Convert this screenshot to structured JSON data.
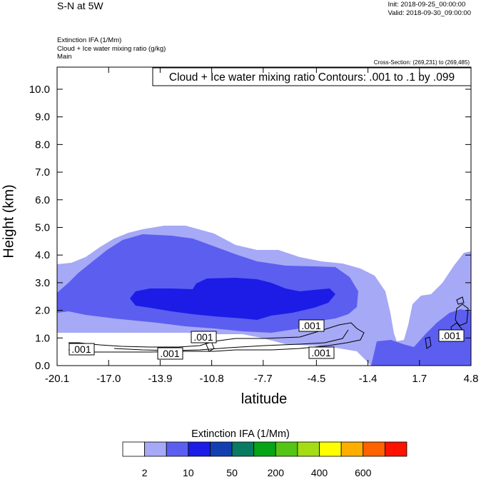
{
  "header": {
    "title": "S-N at 5W",
    "init": "Init: 2018-09-25_00:00:00",
    "valid": "Valid: 2018-09-30_09:00:00",
    "field_lines": [
      "Extinction IFA   (1/Mm)",
      "Cloud + Ice water mixing ratio   (g/kg)",
      "Main"
    ],
    "cross_section": "Cross-Section: (269,231) to (269,485)"
  },
  "chart_data": {
    "type": "contour",
    "contour_label": "Cloud + Ice water mixing ratio Contours: .001 to .1 by .099",
    "xlabel": "latitude",
    "ylabel": "Height (km)",
    "xlim": [
      -20.1,
      4.8
    ],
    "ylim": [
      0.0,
      10.8
    ],
    "x_ticks": [
      "-20.1",
      "-17.0",
      "-13.9",
      "-10.8",
      "-7.7",
      "-4.5",
      "-1.4",
      "1.7",
      "4.8"
    ],
    "y_ticks": [
      "0.0",
      "1.0",
      "2.0",
      "3.0",
      "4.0",
      "5.0",
      "6.0",
      "7.0",
      "8.0",
      "9.0",
      "10.0"
    ],
    "contour_levels_labeled": [
      ".001",
      ".001",
      ".001",
      ".001",
      ".001",
      ".001"
    ],
    "colorbar": {
      "title": "Extinction IFA  (1/Mm)",
      "colors": [
        "#ffffff",
        "#a6a9f5",
        "#5c5ef0",
        "#1c1ce6",
        "#1340b0",
        "#0b7a62",
        "#07a418",
        "#55c414",
        "#a4dd14",
        "#ffff00",
        "#ffae00",
        "#ff6200",
        "#ff1200"
      ],
      "tick_labels": [
        "2",
        "10",
        "50",
        "200",
        "400",
        "600"
      ]
    }
  }
}
